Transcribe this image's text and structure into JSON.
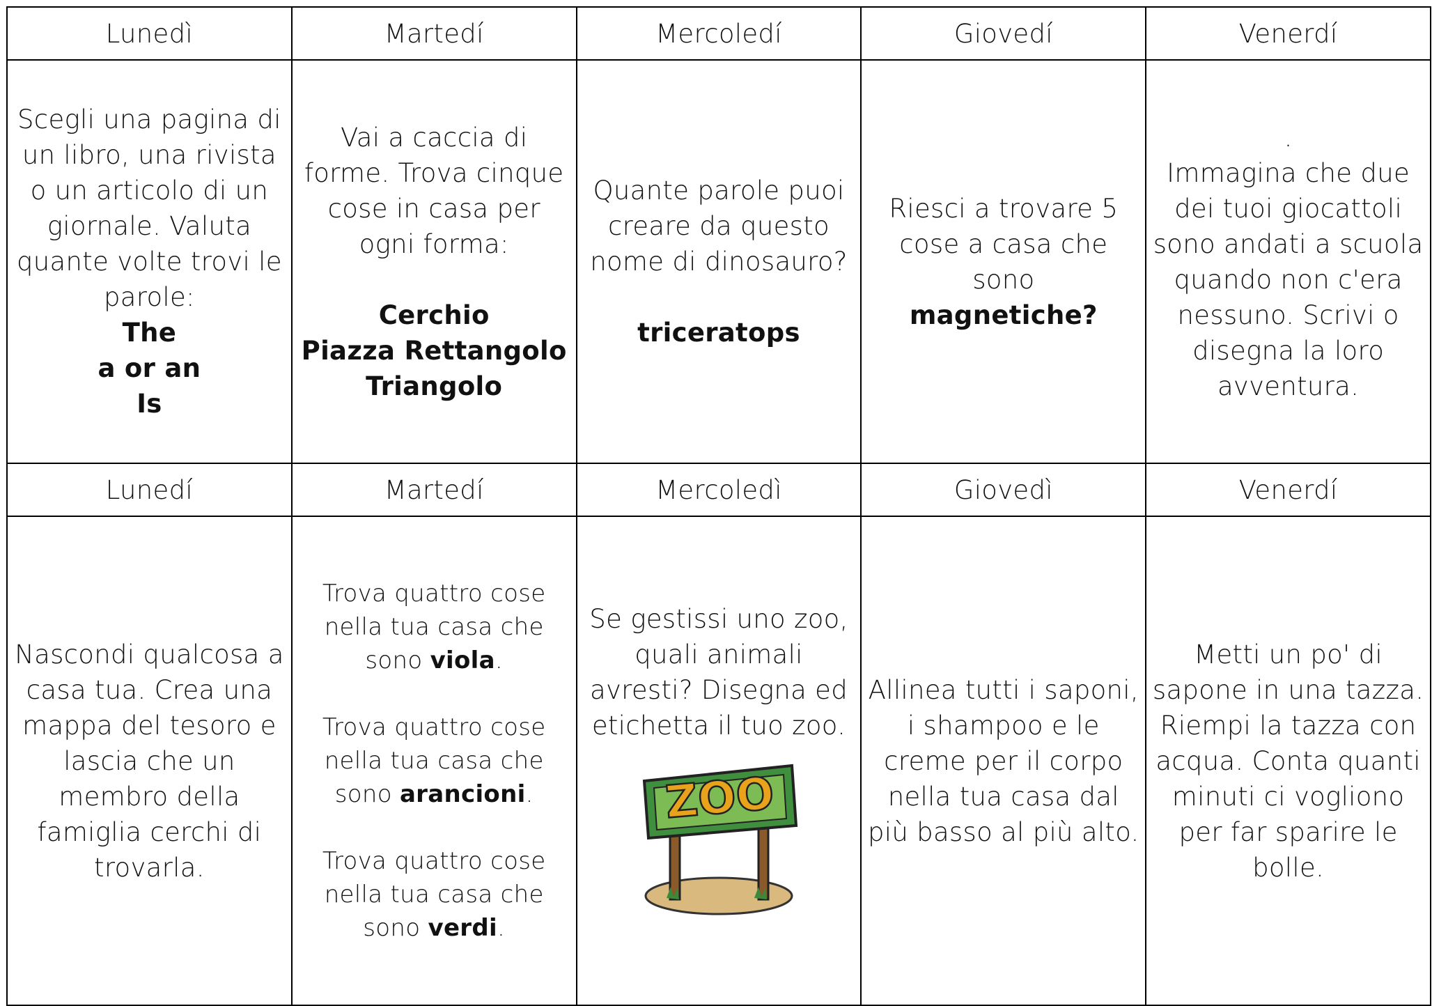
{
  "table": {
    "rows": [
      [
        "Lunedì",
        "Martedí",
        "Mercoledí",
        "Giovedí",
        "Venerdí"
      ],
      [
        {
          "paragraphs": [
            [
              "Scegli una pagina di un libro, una rivista o un articolo di un giornale. Valuta quante volte trovi le parole:"
            ],
            [
              {
                "bold": "The"
              }
            ],
            [
              {
                "bold": "a or an"
              }
            ],
            [
              {
                "bold": "Is"
              }
            ]
          ]
        },
        {
          "paragraphs": [
            [
              "Vai a caccia di forme. Trova cinque cose in casa per ogni forma:"
            ],
            [
              {
                "bold": "Cerchio"
              }
            ],
            [
              {
                "bold": "Piazza Rettangolo"
              }
            ],
            [
              {
                "bold": "Triangolo"
              }
            ]
          ]
        },
        {
          "paragraphs": [
            [
              "Quante parole puoi creare da questo nome di dinosauro?"
            ],
            [
              {
                "bold": "triceratops"
              }
            ]
          ]
        },
        {
          "paragraphs": [
            [
              "Riesci a trovare 5 cose a casa che sono"
            ],
            [
              {
                "bold": "magnetiche?"
              }
            ]
          ]
        },
        {
          "paragraphs": [
            [
              "."
            ],
            [
              "Immagina che due dei tuoi giocattoli sono andati a scuola quando non c'era nessuno. Scrivi o disegna la loro avventura."
            ]
          ]
        }
      ],
      [
        "Lunedí",
        "Martedí",
        "Mercoledì",
        "Giovedì",
        "Venerdí"
      ],
      [
        {
          "paragraphs": [
            [
              "Nascondi qualcosa a casa tua. Crea una mappa del tesoro e lascia che un membro della famiglia cerchi di trovarla."
            ]
          ]
        },
        {
          "paragraphs": [
            [
              "Trova quattro cose nella tua casa che sono ",
              {
                "bold": "viola"
              },
              "."
            ],
            [
              "Trova quattro cose nella tua  casa che sono ",
              {
                "bold": "arancioni"
              },
              "."
            ],
            [
              "Trova quattro cose nella tua casa che sono ",
              {
                "bold": "verdi"
              },
              "."
            ]
          ]
        },
        {
          "paragraphs": [
            [
              "Se gestissi uno zoo, quali animali avresti? Disegna ed etichetta il tuo zoo."
            ]
          ],
          "sign": "ZOO"
        },
        {
          "paragraphs": [
            [
              "Allinea tutti i saponi, i shampoo e le creme per il corpo nella tua casa dal più basso al più alto."
            ]
          ]
        },
        {
          "paragraphs": [
            [
              "Metti un po' di sapone in una tazza. Riempi la tazza con acqua. Conta quanti minuti ci vogliono per far sparire le bolle."
            ]
          ]
        }
      ]
    ]
  }
}
